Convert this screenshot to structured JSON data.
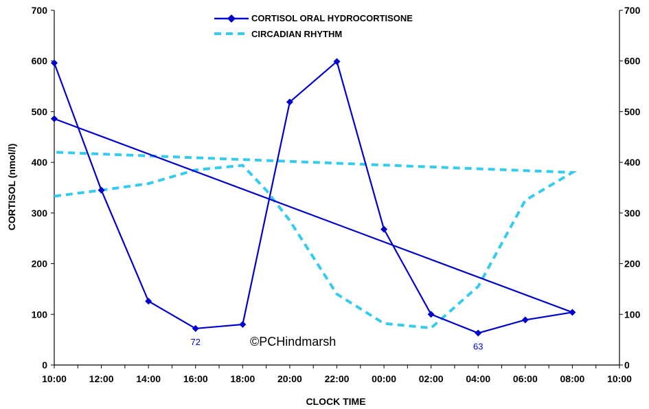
{
  "chart_data": {
    "type": "line",
    "title": "",
    "xlabel": "CLOCK TIME",
    "ylabel": "CORTISOL (nmol/l)",
    "categories": [
      "10:00",
      "11:00",
      "12:00",
      "13:00",
      "14:00",
      "15:00",
      "16:00",
      "17:00",
      "18:00",
      "19:00",
      "20:00",
      "21:00",
      "22:00",
      "23:00",
      "00:00",
      "01:00",
      "02:00",
      "03:00",
      "04:00",
      "05:00",
      "06:00",
      "07:00",
      "08:00",
      "09:00",
      "10:00"
    ],
    "xtick_labels": [
      "10:00",
      "12:00",
      "14:00",
      "16:00",
      "18:00",
      "20:00",
      "22:00",
      "00:00",
      "02:00",
      "04:00",
      "06:00",
      "08:00",
      "10:00"
    ],
    "yticks": [
      0,
      100,
      200,
      300,
      400,
      500,
      600,
      700
    ],
    "ylim": [
      0,
      700
    ],
    "y2lim": [
      0,
      700
    ],
    "grid": false,
    "legend_position": "top-center",
    "series": [
      {
        "name": "CORTISOL ORAL HYDROCORTISONE",
        "color": "#0000cc",
        "style": "solid-diamond",
        "points": [
          {
            "x": "10:00",
            "y": 596
          },
          {
            "x": "12:00",
            "y": 345
          },
          {
            "x": "14:00",
            "y": 126
          },
          {
            "x": "16:00",
            "y": 72
          },
          {
            "x": "18:00",
            "y": 80
          },
          {
            "x": "20:00",
            "y": 519
          },
          {
            "x": "22:00",
            "y": 599
          },
          {
            "x": "00:00",
            "y": 268
          },
          {
            "x": "02:00",
            "y": 100
          },
          {
            "x": "04:00",
            "y": 63
          },
          {
            "x": "06:00",
            "y": 89
          },
          {
            "x": "08:00",
            "y": 104
          },
          {
            "x": "10:00",
            "y": 486
          }
        ]
      },
      {
        "name": "CIRCADIAN RHYTHM",
        "color": "#33ccee",
        "style": "dashed",
        "points": [
          {
            "x": "10:00",
            "y": 333
          },
          {
            "x": "12:00",
            "y": 345
          },
          {
            "x": "14:00",
            "y": 358
          },
          {
            "x": "16:00",
            "y": 385
          },
          {
            "x": "18:00",
            "y": 394
          },
          {
            "x": "19:00",
            "y": 345
          },
          {
            "x": "20:00",
            "y": 285
          },
          {
            "x": "22:00",
            "y": 140
          },
          {
            "x": "00:00",
            "y": 82
          },
          {
            "x": "02:00",
            "y": 73
          },
          {
            "x": "04:00",
            "y": 155
          },
          {
            "x": "06:00",
            "y": 325
          },
          {
            "x": "08:00",
            "y": 380
          },
          {
            "x": "10:00",
            "y": 420
          }
        ]
      }
    ],
    "data_labels": [
      {
        "text": "72",
        "x": "16:00",
        "y": 72
      },
      {
        "text": "63",
        "x": "04:00",
        "y": 63
      }
    ],
    "annotation": "©PCHindmarsh"
  }
}
